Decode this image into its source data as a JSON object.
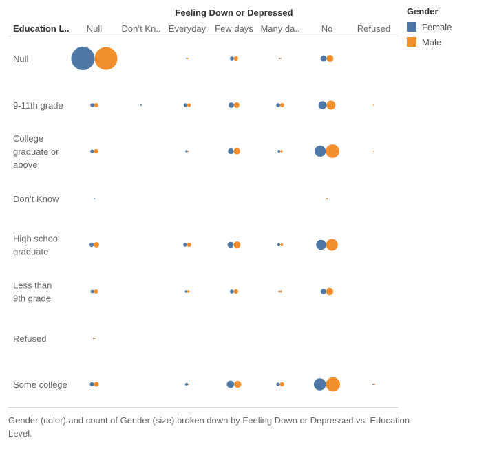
{
  "chart_data": {
    "type": "scatter",
    "title": "Feeling Down or Depressed",
    "row_header": "Education L..",
    "columns": [
      "Null",
      "Don’t Kn..",
      "Everyday",
      "Few days",
      "Many da..",
      "No",
      "Refused"
    ],
    "rows": [
      [
        "Null"
      ],
      [
        "9-11th grade"
      ],
      [
        "College",
        "graduate or",
        "above"
      ],
      [
        "Don’t Know"
      ],
      [
        "High school",
        "graduate"
      ],
      [
        "Less than",
        "9th grade"
      ],
      [
        "Refused"
      ],
      [
        "Some college"
      ]
    ],
    "series": [
      {
        "name": "Female",
        "color": "#4e79a7",
        "values": [
          [
            300,
            0,
            1,
            8,
            1,
            20,
            0
          ],
          [
            8,
            1,
            7,
            15,
            8,
            35,
            0
          ],
          [
            7,
            0,
            3,
            18,
            4,
            68,
            0
          ],
          [
            1,
            0,
            0,
            0,
            0,
            0,
            0
          ],
          [
            10,
            0,
            8,
            20,
            5,
            55,
            0
          ],
          [
            6,
            0,
            3,
            8,
            1,
            16,
            0
          ],
          [
            1,
            0,
            0,
            0,
            0,
            0,
            0
          ],
          [
            10,
            0,
            5,
            30,
            7,
            80,
            1
          ]
        ]
      },
      {
        "name": "Male",
        "color": "#f28e2b",
        "values": [
          [
            285,
            0,
            1,
            10,
            1,
            25,
            0
          ],
          [
            9,
            0,
            7,
            17,
            9,
            44,
            1
          ],
          [
            11,
            0,
            1,
            22,
            3,
            100,
            1
          ],
          [
            0,
            0,
            0,
            0,
            0,
            1,
            0
          ],
          [
            16,
            0,
            10,
            26,
            4,
            75,
            0
          ],
          [
            9,
            0,
            3,
            11,
            3,
            28,
            0
          ],
          [
            1,
            0,
            0,
            0,
            0,
            0,
            0
          ],
          [
            13,
            0,
            1,
            27,
            10,
            110,
            1
          ]
        ]
      }
    ],
    "size_max": 300,
    "legend": {
      "title": "Gender",
      "placement": "top-right"
    },
    "caption": "Gender (color) and count of Gender (size) broken down by Feeling Down or Depressed vs. Education Level."
  }
}
